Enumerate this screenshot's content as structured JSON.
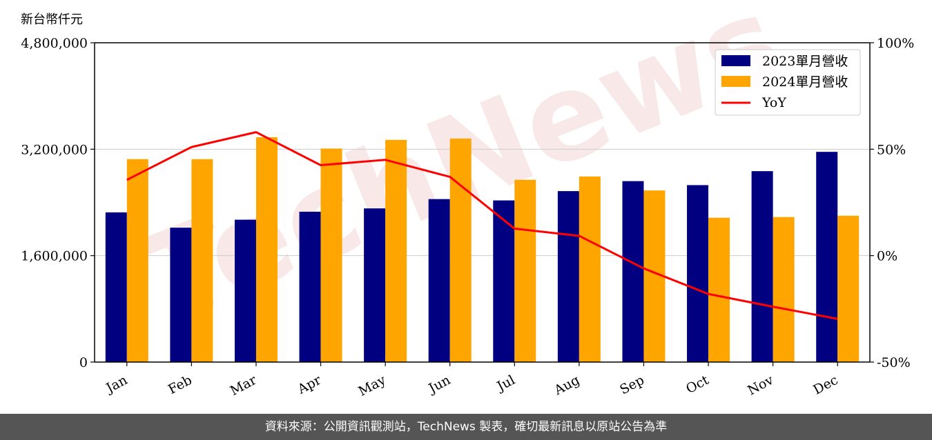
{
  "chart_data": {
    "type": "bar",
    "unit_label": "新台幣仟元",
    "categories": [
      "Jan",
      "Feb",
      "Mar",
      "Apr",
      "May",
      "Jun",
      "Jul",
      "Aug",
      "Sep",
      "Oct",
      "Nov",
      "Dec"
    ],
    "series": [
      {
        "name": "2023單月營收",
        "type": "bar",
        "color": "#000080",
        "values": [
          2250000,
          2020000,
          2140000,
          2260000,
          2310000,
          2450000,
          2430000,
          2570000,
          2720000,
          2660000,
          2870000,
          3160000
        ]
      },
      {
        "name": "2024單月營收",
        "type": "bar",
        "color": "#ffa500",
        "values": [
          3050000,
          3050000,
          3380000,
          3210000,
          3340000,
          3360000,
          2740000,
          2790000,
          2580000,
          2170000,
          2180000,
          2200000
        ]
      },
      {
        "name": "YoY",
        "type": "line",
        "axis": "right",
        "color": "#ff0000",
        "values": [
          35.6,
          51.0,
          58.0,
          42.5,
          45.0,
          37.0,
          12.7,
          9.3,
          -6.0,
          -18.0,
          -24.0,
          -29.7
        ]
      }
    ],
    "y_left": {
      "ticks": [
        0,
        1600000,
        3200000,
        4800000
      ],
      "tick_labels": [
        "0",
        "1,600,000",
        "3,200,000",
        "4,800,000"
      ],
      "ylim": [
        0,
        4800000
      ]
    },
    "y_right": {
      "ticks": [
        -50,
        0,
        50,
        100
      ],
      "tick_labels": [
        "-50%",
        "0%",
        "50%",
        "100%"
      ],
      "ylim": [
        -50,
        100
      ]
    },
    "grid": "horizontal",
    "legend_position": "top-right"
  },
  "watermark": "TechNews",
  "footer": {
    "source_text": "資料來源：公開資訊觀測站，TechNews 製表，確切最新訊息以原站公告為準"
  }
}
